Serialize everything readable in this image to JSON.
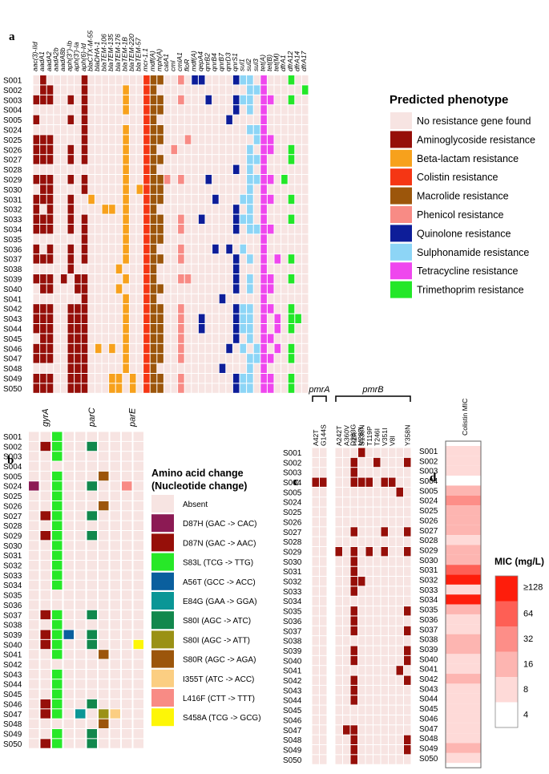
{
  "figure": {
    "panel_labels": [
      "a",
      "b",
      "c",
      "d"
    ]
  },
  "chart_data": [
    {
      "panel": "a",
      "type": "heatmap",
      "title": "Predicted phenotype",
      "rows": [
        "S001",
        "S002",
        "S003",
        "S004",
        "S005",
        "S024",
        "S025",
        "S026",
        "S027",
        "S028",
        "S029",
        "S030",
        "S031",
        "S032",
        "S033",
        "S034",
        "S035",
        "S036",
        "S037",
        "S038",
        "S039",
        "S040",
        "S041",
        "S042",
        "S043",
        "S044",
        "S045",
        "S046",
        "S047",
        "S048",
        "S049",
        "S050"
      ],
      "columns": [
        "aac(3)-IId",
        "aadA1",
        "aadA2",
        "aadA2b",
        "aadA8b",
        "aph(3'')-Ib",
        "aph(3')-Ia",
        "aph(6)-Id",
        "blaCTX-M-55",
        "blaDHA-1",
        "blaTEM-106",
        "blaTEM-135",
        "blaTEM-176",
        "blaTEM-1B",
        "blaTEM-220",
        "blaTEM-57",
        "mcr-1.1",
        "mdf(A)",
        "mph(A)",
        "catA1",
        "cml",
        "cmlA1",
        "floR",
        "mdf(A)",
        "qepA4",
        "qnrB2",
        "qnrB4",
        "qnrB7",
        "qnrD3",
        "qnrS1",
        "sul1",
        "sul2",
        "sul3",
        "tet(A)",
        "tet(B)",
        "tet(M)",
        "dfrA1",
        "dfrA12",
        "dfrA14",
        "dfrA17"
      ],
      "column_categories": [
        "A",
        "A",
        "A",
        "A",
        "A",
        "A",
        "A",
        "A",
        "B",
        "B",
        "B",
        "B",
        "B",
        "B",
        "B",
        "B",
        "C",
        "M",
        "M",
        "P",
        "P",
        "P",
        "P",
        "Q",
        "Q",
        "Q",
        "Q",
        "Q",
        "Q",
        "Q",
        "S",
        "S",
        "S",
        "T",
        "T",
        "T",
        "W",
        "W",
        "W",
        "W"
      ],
      "legend": [
        {
          "code": "N",
          "label": "No resistance gene found",
          "color": "#f7e4e2"
        },
        {
          "code": "A",
          "label": "Aminoglycoside resistance",
          "color": "#960f09"
        },
        {
          "code": "B",
          "label": "Beta-lactam resistance",
          "color": "#f7a11c"
        },
        {
          "code": "C",
          "label": "Colistin resistance",
          "color": "#f53614"
        },
        {
          "code": "M",
          "label": "Macrolide resistance",
          "color": "#9c560b"
        },
        {
          "code": "P",
          "label": "Phenicol resistance",
          "color": "#f88b85"
        },
        {
          "code": "Q",
          "label": "Quinolone resistance",
          "color": "#0d1d99"
        },
        {
          "code": "S",
          "label": "Sulphonamide resistance",
          "color": "#8dd5f6"
        },
        {
          "code": "T",
          "label": "Tetracycline resistance",
          "color": "#ef47ee"
        },
        {
          "code": "W",
          "label": "Trimethoprim resistance",
          "color": "#23e728"
        }
      ],
      "present": [
        [
          1,
          7,
          16,
          17,
          18,
          21,
          23,
          24,
          29,
          30,
          31,
          33,
          37
        ],
        [
          1,
          2,
          7,
          13,
          16,
          17,
          31,
          32,
          33,
          39
        ],
        [
          0,
          1,
          2,
          5,
          7,
          13,
          16,
          17,
          18,
          21,
          25,
          29,
          30,
          31,
          33,
          34,
          37
        ],
        [
          7,
          13,
          16,
          17,
          18,
          29,
          31,
          33
        ],
        [
          0,
          5,
          7,
          16,
          17,
          28,
          33
        ],
        [
          7,
          13,
          16,
          17,
          18,
          31,
          32,
          33
        ],
        [
          0,
          1,
          2,
          7,
          13,
          16,
          17,
          18,
          22,
          32,
          33,
          34
        ],
        [
          0,
          1,
          2,
          5,
          7,
          13,
          16,
          17,
          20,
          31,
          33,
          34,
          37
        ],
        [
          0,
          1,
          2,
          5,
          7,
          13,
          16,
          17,
          18,
          31,
          32,
          33,
          37
        ],
        [
          13,
          16,
          17,
          29,
          31,
          33
        ],
        [
          0,
          1,
          2,
          5,
          7,
          13,
          16,
          17,
          18,
          19,
          21,
          25,
          31,
          32,
          33,
          34,
          36
        ],
        [
          1,
          2,
          7,
          13,
          15,
          16,
          17,
          18,
          31,
          33
        ],
        [
          0,
          1,
          2,
          5,
          8,
          13,
          16,
          17,
          18,
          26,
          30,
          31,
          33,
          34,
          37
        ],
        [
          0,
          2,
          5,
          10,
          11,
          13,
          16,
          17,
          29,
          31,
          33
        ],
        [
          0,
          1,
          2,
          5,
          7,
          13,
          16,
          17,
          18,
          21,
          24,
          29,
          30,
          31,
          33,
          37
        ],
        [
          0,
          1,
          2,
          5,
          7,
          13,
          16,
          17,
          18,
          21,
          29,
          31,
          32,
          33,
          34
        ],
        [
          7,
          13,
          16,
          17,
          18,
          33
        ],
        [
          0,
          2,
          5,
          7,
          13,
          16,
          17,
          21,
          26,
          28,
          30,
          33
        ],
        [
          0,
          1,
          2,
          5,
          7,
          13,
          16,
          17,
          18,
          21,
          29,
          31,
          33,
          35,
          37
        ],
        [
          5,
          12,
          16,
          17,
          29,
          33
        ],
        [
          0,
          1,
          2,
          4,
          6,
          7,
          13,
          16,
          17,
          21,
          22,
          29,
          31,
          33,
          34,
          37
        ],
        [
          1,
          2,
          6,
          7,
          12,
          16,
          17,
          18,
          29,
          31,
          33,
          34
        ],
        [
          7,
          13,
          16,
          17,
          27,
          33
        ],
        [
          0,
          1,
          2,
          5,
          6,
          7,
          13,
          16,
          17,
          18,
          21,
          29,
          30,
          31,
          33,
          34,
          37
        ],
        [
          0,
          1,
          2,
          5,
          6,
          7,
          13,
          16,
          17,
          18,
          21,
          24,
          29,
          30,
          31,
          33,
          35,
          37,
          38
        ],
        [
          0,
          1,
          2,
          5,
          6,
          7,
          13,
          16,
          17,
          18,
          21,
          24,
          29,
          30,
          31,
          33,
          35,
          37
        ],
        [
          1,
          2,
          5,
          6,
          7,
          13,
          16,
          17,
          18,
          21,
          29,
          31,
          33,
          34
        ],
        [
          0,
          1,
          2,
          5,
          6,
          7,
          9,
          11,
          13,
          16,
          17,
          18,
          21,
          28,
          30,
          32,
          33,
          35,
          37
        ],
        [
          0,
          1,
          2,
          5,
          6,
          7,
          13,
          16,
          17,
          18,
          21,
          31,
          32,
          33,
          34,
          37
        ],
        [
          5,
          6,
          7,
          13,
          16,
          17,
          27,
          31,
          33
        ],
        [
          0,
          1,
          2,
          5,
          6,
          7,
          11,
          12,
          14,
          16,
          17,
          18,
          21,
          29,
          30,
          31,
          33,
          34,
          37
        ],
        [
          0,
          1,
          2,
          5,
          6,
          7,
          11,
          12,
          14,
          16,
          17,
          18,
          21,
          29,
          30,
          31,
          33,
          34,
          37
        ]
      ]
    },
    {
      "panel": "b",
      "type": "heatmap",
      "genes": [
        {
          "name": "gyrA",
          "span": [
            0,
            2
          ]
        },
        {
          "name": "parC",
          "span": [
            3,
            7
          ]
        },
        {
          "name": "parE",
          "span": [
            8,
            9
          ]
        }
      ],
      "num_columns": 10,
      "rows": [
        "S001",
        "S002",
        "S003",
        "S004",
        "S005",
        "S024",
        "S025",
        "S026",
        "S027",
        "S028",
        "S029",
        "S030",
        "S031",
        "S032",
        "S033",
        "S034",
        "S035",
        "S036",
        "S037",
        "S038",
        "S039",
        "S040",
        "S041",
        "S042",
        "S043",
        "S044",
        "S045",
        "S046",
        "S047",
        "S048",
        "S049",
        "S050"
      ],
      "legend_title": [
        "Amino acid change",
        "(Nucleotide change)"
      ],
      "legend": [
        {
          "code": "absent",
          "label": "Absent",
          "color": "#f7e4e2"
        },
        {
          "code": "D87H",
          "label": "D87H (GAC -> CAC)",
          "color": "#8c1a54"
        },
        {
          "code": "D87N",
          "label": "D87N (GAC -> AAC)",
          "color": "#960f09"
        },
        {
          "code": "S83L",
          "label": "S83L (TCG -> TTG)",
          "color": "#27e828"
        },
        {
          "code": "A56T",
          "label": "A56T (GCC -> ACC)",
          "color": "#0a5f9e"
        },
        {
          "code": "E84G",
          "label": "E84G (GAA -> GGA)",
          "color": "#0a9696"
        },
        {
          "code": "S80Ic",
          "label": "S80I (AGC -> ATC)",
          "color": "#12884d"
        },
        {
          "code": "S80It",
          "label": "S80I (AGC -> ATT)",
          "color": "#9a9115"
        },
        {
          "code": "S80R",
          "label": "S80R (AGC -> AGA)",
          "color": "#9c560b"
        },
        {
          "code": "I355T",
          "label": "I355T (ATC -> ACC)",
          "color": "#fbce82"
        },
        {
          "code": "L416F",
          "label": "L416F (CTT -> TTT)",
          "color": "#f88b85"
        },
        {
          "code": "S458A",
          "label": "S458A (TCG -> GCG)",
          "color": "#fdf607"
        }
      ],
      "cells": [
        [
          [
            2,
            "S83L"
          ]
        ],
        [
          [
            1,
            "D87N"
          ],
          [
            2,
            "S83L"
          ],
          [
            5,
            "S80Ic"
          ]
        ],
        [
          [
            2,
            "S83L"
          ]
        ],
        [],
        [
          [
            2,
            "S83L"
          ],
          [
            6,
            "S80R"
          ]
        ],
        [
          [
            0,
            "D87H"
          ],
          [
            2,
            "S83L"
          ],
          [
            5,
            "S80Ic"
          ],
          [
            8,
            "L416F"
          ]
        ],
        [
          [
            2,
            "S83L"
          ]
        ],
        [
          [
            2,
            "S83L"
          ],
          [
            6,
            "S80R"
          ]
        ],
        [
          [
            1,
            "D87N"
          ],
          [
            2,
            "S83L"
          ],
          [
            5,
            "S80Ic"
          ]
        ],
        [
          [
            2,
            "S83L"
          ]
        ],
        [
          [
            1,
            "D87N"
          ],
          [
            2,
            "S83L"
          ],
          [
            5,
            "S80Ic"
          ]
        ],
        [
          [
            2,
            "S83L"
          ]
        ],
        [
          [
            2,
            "S83L"
          ]
        ],
        [
          [
            2,
            "S83L"
          ]
        ],
        [
          [
            2,
            "S83L"
          ]
        ],
        [
          [
            2,
            "S83L"
          ]
        ],
        [],
        [],
        [
          [
            1,
            "D87N"
          ],
          [
            2,
            "S83L"
          ],
          [
            5,
            "S80Ic"
          ]
        ],
        [
          [
            2,
            "S83L"
          ]
        ],
        [
          [
            1,
            "D87N"
          ],
          [
            2,
            "S83L"
          ],
          [
            3,
            "A56T"
          ],
          [
            5,
            "S80Ic"
          ]
        ],
        [
          [
            1,
            "D87N"
          ],
          [
            2,
            "S83L"
          ],
          [
            5,
            "S80Ic"
          ],
          [
            9,
            "S458A"
          ]
        ],
        [
          [
            2,
            "S83L"
          ],
          [
            6,
            "S80R"
          ]
        ],
        [],
        [
          [
            2,
            "S83L"
          ]
        ],
        [
          [
            2,
            "S83L"
          ]
        ],
        [
          [
            2,
            "S83L"
          ]
        ],
        [
          [
            1,
            "D87N"
          ],
          [
            2,
            "S83L"
          ],
          [
            5,
            "S80Ic"
          ]
        ],
        [
          [
            1,
            "D87N"
          ],
          [
            2,
            "S83L"
          ],
          [
            4,
            "E84G"
          ],
          [
            6,
            "S80It"
          ],
          [
            7,
            "I355T"
          ]
        ],
        [
          [
            6,
            "S80R"
          ]
        ],
        [
          [
            2,
            "S83L"
          ],
          [
            5,
            "S80Ic"
          ]
        ],
        [
          [
            1,
            "D87N"
          ],
          [
            2,
            "S83L"
          ],
          [
            5,
            "S80Ic"
          ]
        ]
      ]
    },
    {
      "panel": "c",
      "type": "heatmap",
      "genes": [
        {
          "name": "pmrA",
          "span": [
            0,
            1
          ]
        },
        {
          "name": "pmrB",
          "span": [
            2,
            11
          ]
        }
      ],
      "columns": [
        "A42T",
        "G144S",
        "A242T",
        "A360V",
        "D283G",
        "H2R",
        "M287I",
        "S138N",
        "T119P",
        "T246I",
        "V351I",
        "V8I",
        "Y358N"
      ],
      "column_slots": [
        0,
        1,
        2,
        3,
        3,
        4,
        4,
        5,
        6,
        7,
        8,
        9,
        11
      ],
      "present_color": "#960f09",
      "absent_color": "#f7e4e2",
      "rows": [
        "S001",
        "S002",
        "S003",
        "S004",
        "S005",
        "S024",
        "S025",
        "S026",
        "S027",
        "S028",
        "S029",
        "S030",
        "S031",
        "S032",
        "S033",
        "S034",
        "S035",
        "S036",
        "S037",
        "S038",
        "S039",
        "S040",
        "S041",
        "S042",
        "S043",
        "S044",
        "S045",
        "S046",
        "S047",
        "S048",
        "S049",
        "S050"
      ],
      "present": [
        [
          5
        ],
        [
          4,
          7,
          11
        ],
        [
          4
        ],
        [
          0,
          1,
          4,
          5,
          6,
          8,
          9
        ],
        [
          10
        ],
        [],
        [],
        [],
        [
          4,
          8,
          11
        ],
        [],
        [
          2,
          4,
          6,
          8,
          11
        ],
        [
          4
        ],
        [
          4
        ],
        [
          4,
          5
        ],
        [
          4
        ],
        [],
        [
          4,
          11
        ],
        [
          4
        ],
        [
          4,
          11
        ],
        [],
        [
          4,
          11
        ],
        [
          4,
          11
        ],
        [
          10
        ],
        [
          4,
          11
        ],
        [
          4
        ],
        [
          4
        ],
        [],
        [],
        [
          3,
          4
        ],
        [
          4,
          11
        ],
        [
          4,
          11
        ],
        [
          4
        ]
      ]
    },
    {
      "panel": "d",
      "type": "heatmap",
      "title": "Colistin MIC",
      "legend_title": "MIC (mg/L)",
      "scale_ticks": [
        "≥128",
        "64",
        "32",
        "16",
        "8",
        "4"
      ],
      "scale_colors": [
        "#fe1d0b",
        "#fe5f55",
        "#fd8e88",
        "#fdb5b1",
        "#fedad8",
        "#ffffff"
      ],
      "rows": [
        "S001",
        "S002",
        "S003",
        "S004",
        "S005",
        "S024",
        "S025",
        "S026",
        "S027",
        "S028",
        "S029",
        "S030",
        "S031",
        "S032",
        "S033",
        "S034",
        "S035",
        "S036",
        "S037",
        "S038",
        "S039",
        "S040",
        "S041",
        "S042",
        "S043",
        "S044",
        "S045",
        "S046",
        "S047",
        "S048",
        "S049",
        "S050"
      ],
      "mic_mg_per_L": [
        8,
        8,
        8,
        4,
        16,
        32,
        16,
        16,
        16,
        8,
        16,
        16,
        64,
        128,
        8,
        128,
        16,
        8,
        8,
        16,
        16,
        8,
        8,
        16,
        8,
        8,
        8,
        8,
        8,
        8,
        16,
        8
      ]
    }
  ]
}
